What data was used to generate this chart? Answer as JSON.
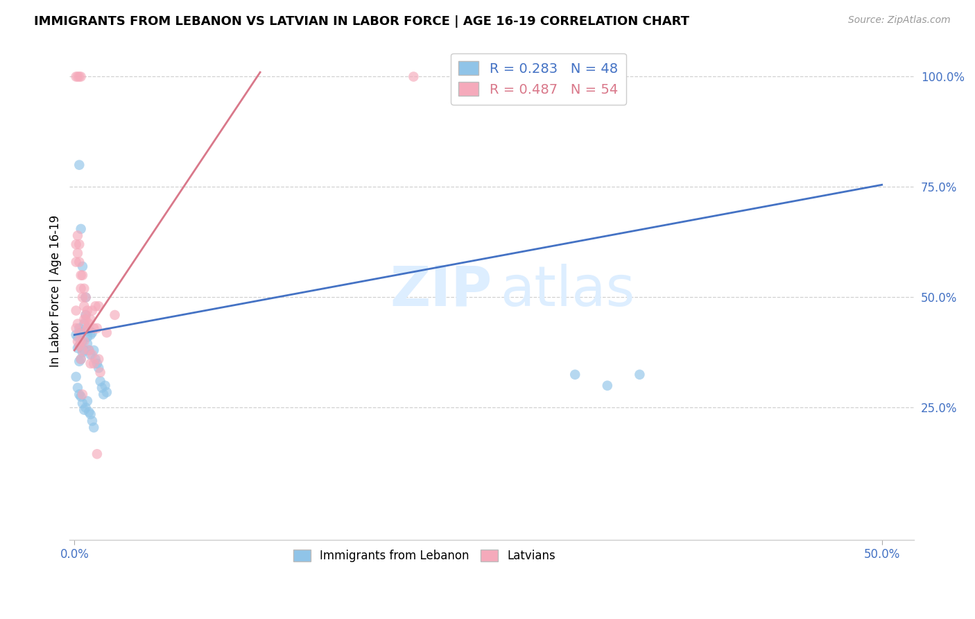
{
  "title": "IMMIGRANTS FROM LEBANON VS LATVIAN IN LABOR FORCE | AGE 16-19 CORRELATION CHART",
  "source": "Source: ZipAtlas.com",
  "ylabel": "In Labor Force | Age 16-19",
  "xlim_min": -0.003,
  "xlim_max": 0.52,
  "ylim_min": -0.05,
  "ylim_max": 1.08,
  "xtick_vals": [
    0.0,
    0.5
  ],
  "xtick_labels": [
    "0.0%",
    "50.0%"
  ],
  "ytick_vals": [
    0.25,
    0.5,
    0.75,
    1.0
  ],
  "ytick_labels": [
    "25.0%",
    "50.0%",
    "75.0%",
    "100.0%"
  ],
  "legend_r1": "R = 0.283",
  "legend_n1": "N = 48",
  "legend_r2": "R = 0.487",
  "legend_n2": "N = 54",
  "color_blue": "#90c4e8",
  "color_pink": "#f5aabb",
  "color_blue_line": "#4472c4",
  "color_pink_line": "#d9788a",
  "watermark_color": "#ddeeff",
  "blue_line_x0": 0.0,
  "blue_line_y0": 0.415,
  "blue_line_x1": 0.5,
  "blue_line_y1": 0.755,
  "pink_line_x0": 0.0,
  "pink_line_y0": 0.38,
  "pink_line_x1": 0.115,
  "pink_line_y1": 1.01,
  "blue_dots_x": [
    0.001,
    0.002,
    0.002,
    0.003,
    0.003,
    0.003,
    0.004,
    0.004,
    0.005,
    0.005,
    0.006,
    0.006,
    0.007,
    0.007,
    0.008,
    0.008,
    0.009,
    0.009,
    0.01,
    0.01,
    0.011,
    0.012,
    0.013,
    0.014,
    0.015,
    0.016,
    0.017,
    0.018,
    0.019,
    0.02,
    0.001,
    0.002,
    0.003,
    0.004,
    0.005,
    0.006,
    0.007,
    0.008,
    0.009,
    0.01,
    0.011,
    0.012,
    0.003,
    0.004,
    0.005,
    0.31,
    0.33,
    0.35
  ],
  "blue_dots_y": [
    0.415,
    0.41,
    0.385,
    0.43,
    0.39,
    0.355,
    0.36,
    0.42,
    0.4,
    0.375,
    0.44,
    0.38,
    0.5,
    0.46,
    0.41,
    0.395,
    0.425,
    0.38,
    0.37,
    0.415,
    0.42,
    0.38,
    0.36,
    0.35,
    0.34,
    0.31,
    0.295,
    0.28,
    0.3,
    0.285,
    0.32,
    0.295,
    0.28,
    0.275,
    0.26,
    0.245,
    0.25,
    0.265,
    0.24,
    0.235,
    0.22,
    0.205,
    0.8,
    0.655,
    0.57,
    0.325,
    0.3,
    0.325
  ],
  "pink_dots_x": [
    0.001,
    0.001,
    0.002,
    0.002,
    0.003,
    0.003,
    0.004,
    0.004,
    0.005,
    0.005,
    0.006,
    0.006,
    0.007,
    0.007,
    0.008,
    0.008,
    0.009,
    0.01,
    0.011,
    0.012,
    0.001,
    0.001,
    0.002,
    0.002,
    0.003,
    0.003,
    0.004,
    0.004,
    0.005,
    0.006,
    0.007,
    0.008,
    0.009,
    0.01,
    0.011,
    0.012,
    0.013,
    0.014,
    0.015,
    0.016,
    0.02,
    0.025,
    0.001,
    0.002,
    0.003,
    0.004,
    0.21,
    0.28,
    0.3,
    0.32,
    0.005,
    0.006,
    0.014,
    0.015
  ],
  "pink_dots_y": [
    0.62,
    0.58,
    0.64,
    0.6,
    0.62,
    0.58,
    0.55,
    0.52,
    0.55,
    0.5,
    0.52,
    0.48,
    0.5,
    0.46,
    0.47,
    0.43,
    0.44,
    0.45,
    0.47,
    0.43,
    0.47,
    0.43,
    0.44,
    0.4,
    0.42,
    0.39,
    0.4,
    0.36,
    0.38,
    0.4,
    0.45,
    0.43,
    0.38,
    0.35,
    0.37,
    0.35,
    0.48,
    0.43,
    0.36,
    0.33,
    0.42,
    0.46,
    1.0,
    1.0,
    1.0,
    1.0,
    1.0,
    1.0,
    1.0,
    1.0,
    0.28,
    0.45,
    0.145,
    0.48
  ]
}
